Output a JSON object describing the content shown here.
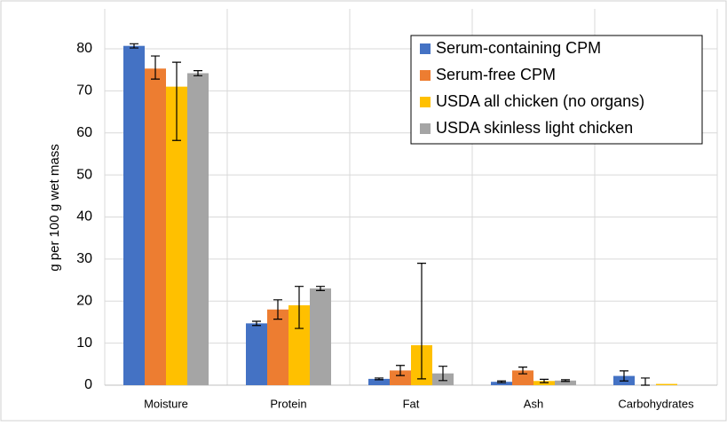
{
  "chart_data": {
    "type": "bar",
    "y_label": "g per 100 g wet mass",
    "categories": [
      "Moisture",
      "Protein",
      "Fat",
      "Ash",
      "Carbohydrates"
    ],
    "series": [
      {
        "name": "Serum-containing CPM",
        "color": "#4472c4",
        "values": [
          80.7,
          14.7,
          1.5,
          0.8,
          2.2
        ],
        "error_minus": [
          0.5,
          0.5,
          0.2,
          0.2,
          1.2
        ],
        "error_plus": [
          0.5,
          0.5,
          0.2,
          0.2,
          1.2
        ]
      },
      {
        "name": "Serum-free CPM",
        "color": "#ed7d31",
        "values": [
          75.3,
          18,
          3.5,
          3.5,
          0
        ],
        "error_minus": [
          2.5,
          2.3,
          1.2,
          0.8,
          0
        ],
        "error_plus": [
          3,
          2.3,
          1.2,
          0.8,
          1.7
        ]
      },
      {
        "name": "USDA all chicken (no organs)",
        "color": "#ffc000",
        "values": [
          71,
          19,
          9.5,
          1,
          0.3
        ],
        "error_minus": [
          12.8,
          5.5,
          8,
          0.4,
          0
        ],
        "error_plus": [
          5.8,
          4.5,
          19.5,
          0.4,
          0
        ]
      },
      {
        "name": "USDA skinless light chicken",
        "color": "#a5a5a5",
        "values": [
          74.2,
          23,
          2.8,
          1.1,
          null
        ],
        "error_minus": [
          0.6,
          0.5,
          1.7,
          0.2,
          null
        ],
        "error_plus": [
          0.6,
          0.5,
          1.7,
          0.2,
          null
        ]
      }
    ],
    "ylim": [
      0,
      80
    ],
    "yticks": [
      0,
      10,
      20,
      30,
      40,
      50,
      60,
      70,
      80
    ],
    "grid": true,
    "legend": "top-right"
  }
}
